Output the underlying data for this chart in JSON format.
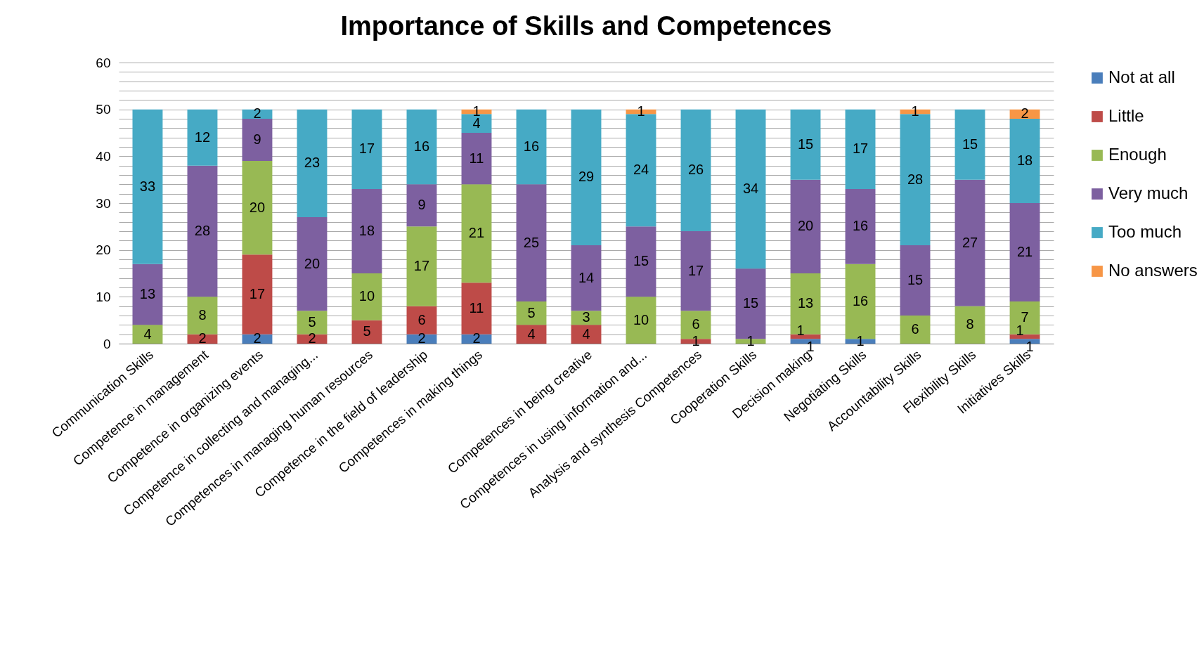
{
  "chart_data": {
    "type": "bar",
    "title": "Importance of  Skills and Competences",
    "stacked": true,
    "data_labels": true,
    "legend": "right",
    "grid": "y",
    "categories": [
      "Communication Skills",
      "Competence in management",
      "Competence in organizing events",
      "Competence in collecting and managing...",
      "Competences in managing human resources",
      "Competence in the field of leadership",
      "Competences in making things",
      null,
      "Competences in being creative",
      "Competences in using information and...",
      "Analysis and synthesis Competences",
      "Cooperation Skills",
      "Decision making",
      "Negotiating Skills",
      "Accountability Skills",
      "Flexibility Skills",
      "Initiatives Skills"
    ],
    "ylim": [
      0,
      60
    ],
    "yticks": [
      0,
      {
        "value": 2,
        "label": null
      },
      {
        "value": 4,
        "label": null
      },
      {
        "value": 6,
        "label": null
      },
      {
        "value": 8,
        "label": null
      },
      10,
      {
        "value": 12,
        "label": null
      },
      {
        "value": 14,
        "label": null
      },
      {
        "value": 16,
        "label": null
      },
      {
        "value": 18,
        "label": null
      },
      20,
      {
        "value": 22,
        "label": null
      },
      {
        "value": 24,
        "label": null
      },
      {
        "value": 26,
        "label": null
      },
      {
        "value": 28,
        "label": null
      },
      30,
      {
        "value": 32,
        "label": null
      },
      {
        "value": 34,
        "label": null
      },
      {
        "value": 36,
        "label": null
      },
      {
        "value": 38,
        "label": null
      },
      40,
      {
        "value": 42,
        "label": null
      },
      {
        "value": 44,
        "label": null
      },
      {
        "value": 46,
        "label": null
      },
      {
        "value": 48,
        "label": null
      },
      50,
      {
        "value": 52,
        "label": null
      },
      {
        "value": 54,
        "label": null
      },
      {
        "value": 56,
        "label": null
      },
      {
        "value": 58,
        "label": null
      },
      60
    ],
    "series": [
      {
        "name": "Not at all",
        "color": "#4a7ebb",
        "values": [
          null,
          null,
          2,
          null,
          null,
          2,
          2,
          null,
          null,
          null,
          null,
          null,
          1,
          1,
          null,
          null,
          1
        ]
      },
      {
        "name": "Little",
        "color": "#be4b48",
        "values": [
          null,
          2,
          17,
          2,
          5,
          6,
          11,
          4,
          4,
          null,
          1,
          null,
          1,
          null,
          null,
          null,
          1
        ]
      },
      {
        "name": "Enough",
        "color": "#98b954",
        "values": [
          4,
          8,
          20,
          5,
          10,
          17,
          21,
          5,
          3,
          10,
          6,
          1,
          13,
          16,
          6,
          8,
          7
        ]
      },
      {
        "name": "Very much",
        "color": "#7d60a0",
        "values": [
          13,
          28,
          9,
          20,
          18,
          9,
          11,
          25,
          14,
          15,
          17,
          15,
          20,
          16,
          15,
          27,
          21
        ]
      },
      {
        "name": "Too much",
        "color": "#46aac5",
        "values": [
          33,
          12,
          2,
          23,
          17,
          16,
          4,
          16,
          29,
          24,
          26,
          34,
          15,
          17,
          28,
          15,
          18
        ]
      },
      {
        "name": "No answers",
        "color": "#f79646",
        "values": [
          null,
          null,
          null,
          null,
          null,
          null,
          1,
          null,
          null,
          1,
          null,
          null,
          null,
          null,
          1,
          null,
          2
        ]
      }
    ]
  }
}
